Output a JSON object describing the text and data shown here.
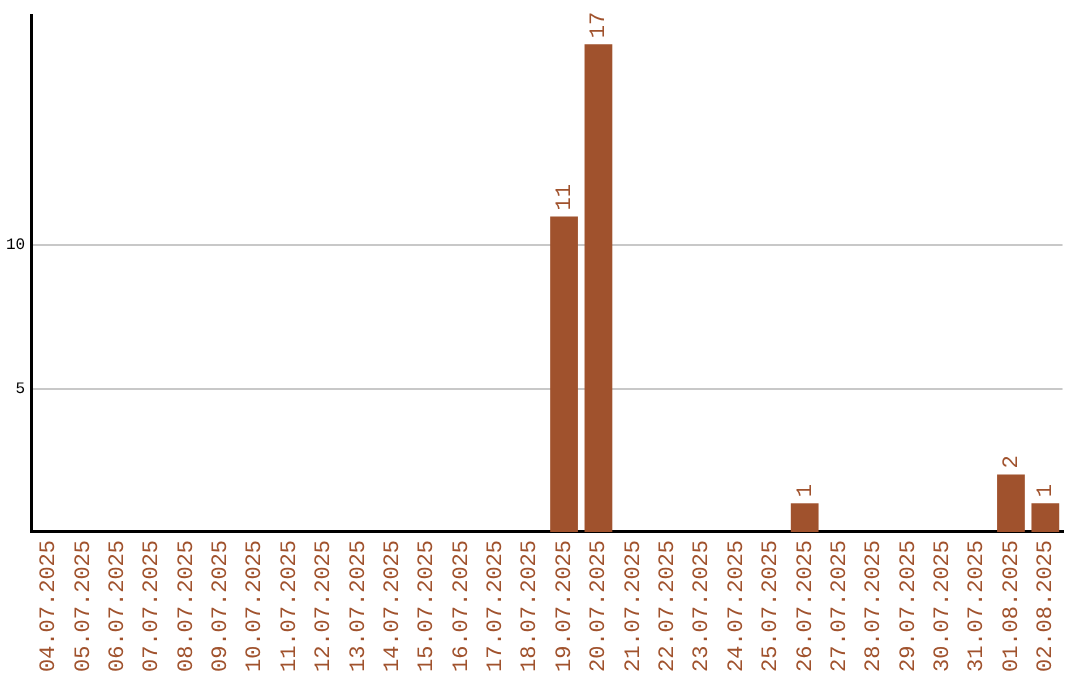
{
  "chart_data": {
    "type": "bar",
    "categories": [
      "04.07.2025",
      "05.07.2025",
      "06.07.2025",
      "07.07.2025",
      "08.07.2025",
      "09.07.2025",
      "10.07.2025",
      "11.07.2025",
      "12.07.2025",
      "13.07.2025",
      "14.07.2025",
      "15.07.2025",
      "16.07.2025",
      "17.07.2025",
      "18.07.2025",
      "19.07.2025",
      "20.07.2025",
      "21.07.2025",
      "22.07.2025",
      "23.07.2025",
      "24.07.2025",
      "25.07.2025",
      "26.07.2025",
      "27.07.2025",
      "28.07.2025",
      "29.07.2025",
      "30.07.2025",
      "31.07.2025",
      "01.08.2025",
      "02.08.2025"
    ],
    "values": [
      0,
      0,
      0,
      0,
      0,
      0,
      0,
      0,
      0,
      0,
      0,
      0,
      0,
      0,
      0,
      11,
      17,
      0,
      0,
      0,
      0,
      0,
      1,
      0,
      0,
      0,
      0,
      0,
      2,
      1
    ],
    "value_labels": [
      null,
      null,
      null,
      null,
      null,
      null,
      null,
      null,
      null,
      null,
      null,
      null,
      null,
      null,
      null,
      "11",
      "17",
      null,
      null,
      null,
      null,
      null,
      "1",
      null,
      null,
      null,
      null,
      null,
      "2",
      "1"
    ],
    "color": "#a0522d",
    "ylim": [
      0,
      18
    ],
    "yticks": [
      5,
      10
    ],
    "grid": "y",
    "legend": false
  }
}
